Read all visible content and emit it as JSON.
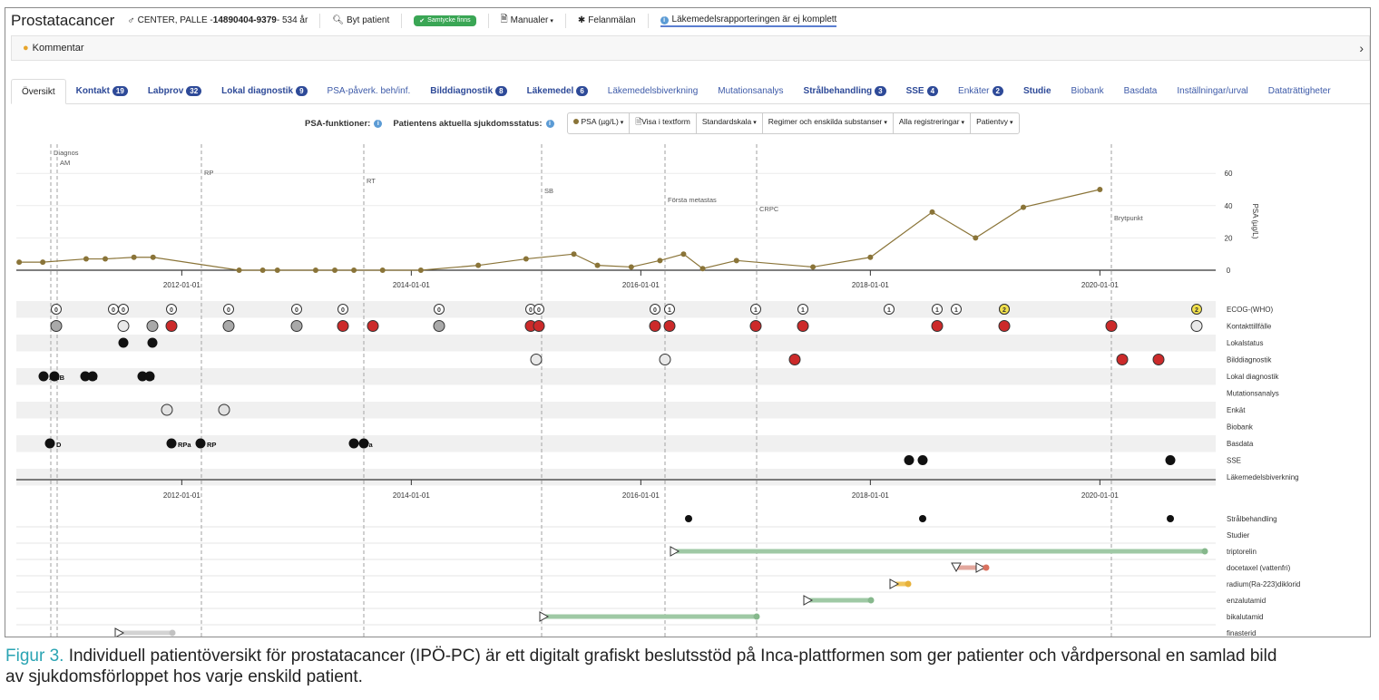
{
  "topbar": {
    "app_title": "Prostatacancer",
    "patient_prefix": "CENTER, PALLE - ",
    "patient_id": "14890404-9379",
    "patient_age": " - 534 år",
    "change_patient": "Byt patient",
    "consent_badge": "Samtycke finns",
    "manuals": "Manualer",
    "error_report": "Felanmälan",
    "drug_report_notice": "Läkemedelsrapporteringen är ej komplett"
  },
  "comment": {
    "label": "Kommentar"
  },
  "tabs": [
    {
      "label": "Översikt",
      "count": "",
      "bold": false,
      "active": true
    },
    {
      "label": "Kontakt",
      "count": "19",
      "bold": true,
      "active": false
    },
    {
      "label": "Labprov",
      "count": "32",
      "bold": true,
      "active": false
    },
    {
      "label": "Lokal diagnostik",
      "count": "9",
      "bold": true,
      "active": false
    },
    {
      "label": "PSA-påverk. beh/inf.",
      "count": "",
      "bold": false,
      "active": false
    },
    {
      "label": "Bilddiagnostik",
      "count": "8",
      "bold": true,
      "active": false
    },
    {
      "label": "Läkemedel",
      "count": "6",
      "bold": true,
      "active": false
    },
    {
      "label": "Läkemedelsbiverkning",
      "count": "",
      "bold": false,
      "active": false
    },
    {
      "label": "Mutationsanalys",
      "count": "",
      "bold": false,
      "active": false
    },
    {
      "label": "Strålbehandling",
      "count": "3",
      "bold": true,
      "active": false
    },
    {
      "label": "SSE",
      "count": "4",
      "bold": true,
      "active": false
    },
    {
      "label": "Enkäter",
      "count": "2",
      "bold": false,
      "active": false
    },
    {
      "label": "Studie",
      "count": "",
      "bold": true,
      "active": false
    },
    {
      "label": "Biobank",
      "count": "",
      "bold": false,
      "active": false
    },
    {
      "label": "Basdata",
      "count": "",
      "bold": false,
      "active": false
    },
    {
      "label": "Inställningar/urval",
      "count": "",
      "bold": false,
      "active": false
    },
    {
      "label": "Dataträttigheter",
      "count": "",
      "bold": false,
      "active": false
    }
  ],
  "psa_bar": {
    "psa_functions": "PSA-funktioner:",
    "disease_status": "Patientens aktuella sjukdomsstatus:",
    "controls": [
      "PSA (µg/L)",
      "Visa i textform",
      "Standardskala",
      "Regimer och enskilda substanser",
      "Alla registreringar",
      "Patientvy"
    ]
  },
  "timeline": {
    "date_ticks": [
      "2012-01-01",
      "2014-01-01",
      "2016-01-01",
      "2018-01-01",
      "2020-01-01"
    ],
    "psa_axis": {
      "label": "PSA (µg/L)",
      "ticks": [
        "60",
        "40",
        "20",
        "0"
      ]
    },
    "events": [
      "Diagnos",
      "AM",
      "RP",
      "RT",
      "SB",
      "Första metastas",
      "CRPC",
      "Brytpunkt"
    ],
    "rows": [
      "ECOG-(WHO)",
      "Kontakttillfälle",
      "Lokalstatus",
      "Bilddiagnostik",
      "Lokal diagnostik",
      "Mutationsanalys",
      "Enkät",
      "Biobank",
      "Basdata",
      "SSE",
      "Läkemedelsbiverkning"
    ],
    "treatment_rows": [
      "Strålbehandling",
      "Studier",
      "triptorelin",
      "docetaxel (vattenfri)",
      "radium(Ra-223)diklorid",
      "enzalutamid",
      "bikalutamid",
      "finasterid"
    ],
    "ecog_values": [
      "0",
      "0",
      "0",
      "0",
      "0",
      "0",
      "0",
      "0",
      "0",
      "0",
      "0",
      "1",
      "1",
      "1",
      "1",
      "1",
      "1",
      "1",
      "2",
      "2"
    ],
    "marker_labels": [
      "AMB",
      "B",
      "B",
      "D",
      "RPa",
      "RP",
      "RTa"
    ]
  },
  "chart_data": {
    "type": "line",
    "ylabel": "PSA (µg/L)",
    "ylim": [
      0,
      60
    ],
    "series": [
      {
        "x": [
          "2010-08-01",
          "2010-10-15",
          "2011-03-01",
          "2011-05-01",
          "2011-08-01",
          "2011-10-01",
          "2012-07-01",
          "2012-09-15",
          "2012-11-01",
          "2013-03-01",
          "2013-05-01",
          "2013-07-01",
          "2013-10-01",
          "2014-02-01",
          "2014-08-01",
          "2015-01-01",
          "2015-06-01",
          "2015-08-15",
          "2015-12-01",
          "2016-03-01",
          "2016-05-15",
          "2016-07-15",
          "2016-11-01",
          "2017-07-01",
          "2018-01-01",
          "2018-07-15",
          "2018-12-01",
          "2019-05-01",
          "2020-01-01"
        ],
        "y": [
          5,
          5,
          7,
          7,
          8,
          8,
          0,
          0,
          0,
          0,
          0,
          0,
          0,
          0,
          3,
          7,
          10,
          3,
          2,
          6,
          10,
          1,
          6,
          2,
          8,
          36,
          20,
          39,
          50
        ]
      }
    ]
  },
  "caption": {
    "figure": "Figur 3.",
    "text": " Individuell patientöversikt för prostatacancer (IPÖ-PC) är ett digitalt grafiskt beslutsstöd på Inca-plattformen som ger patienter och vårdpersonal en samlad bild av sjukdomsförloppet hos varje enskild patient."
  },
  "colors": {
    "psa_line": "#8a7438",
    "red_marker": "#cc2a2a",
    "grey_marker": "#a9a9a9",
    "yellow_badge": "#f2e14c",
    "tab_blue": "#2e4a98",
    "green_bar": "#9fc9a5",
    "salmon_bar": "#e3a79d",
    "yellow_bar": "#f0c55b",
    "caption_accent": "#2aa4b3"
  }
}
